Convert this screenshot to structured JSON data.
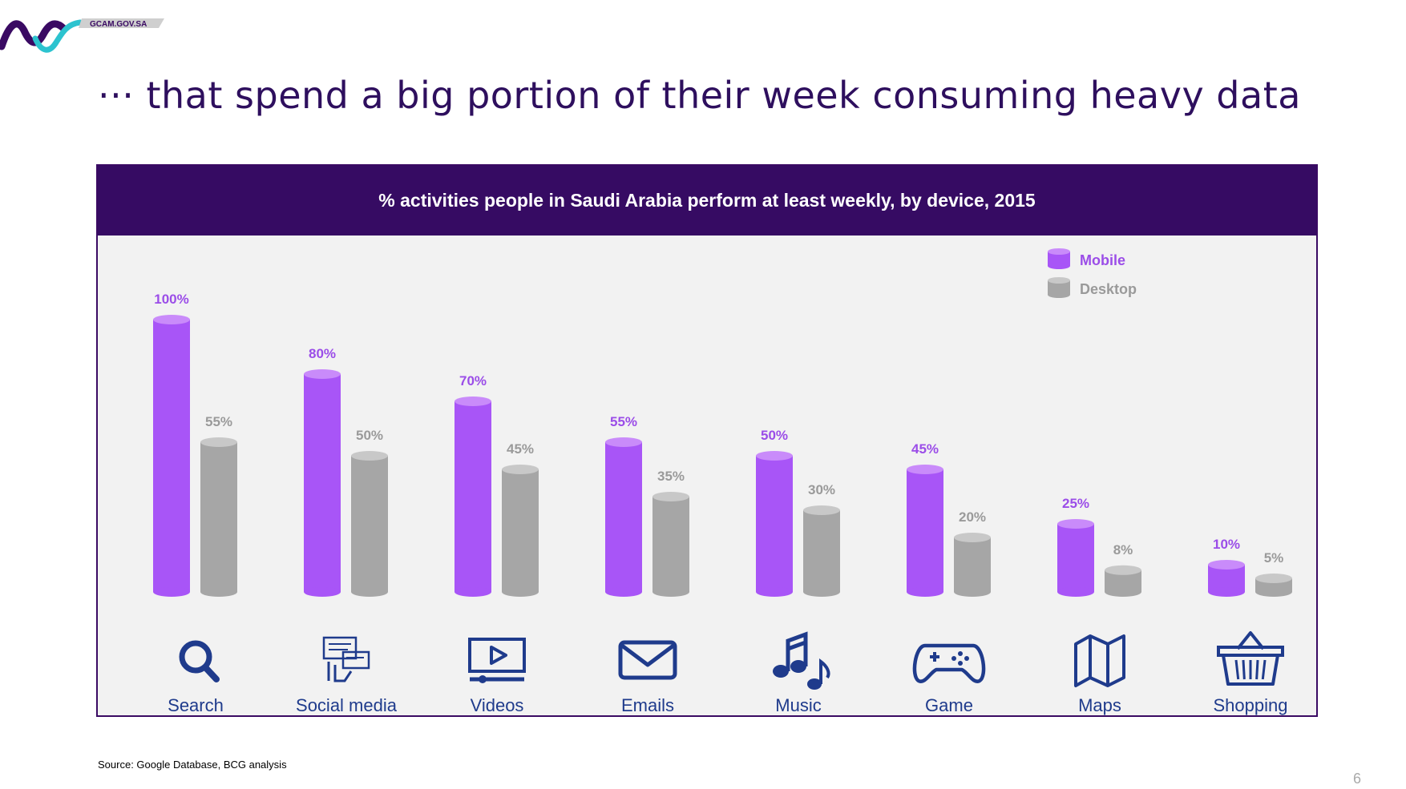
{
  "header": {
    "logo_text": "GCAM.GOV.SA",
    "title": "··· that spend a big portion of their week consuming heavy data"
  },
  "colors": {
    "mobile": "#a855f7",
    "mobile_top": "#c98bfa",
    "desktop": "#a6a6a6",
    "desktop_top": "#c8c8c8",
    "mobile_label": "#9b4de8",
    "desktop_label": "#9a9a9a",
    "icon": "#1f3b8c",
    "category_label": "#1f3b8c",
    "header_bg": "#360b63"
  },
  "chart_data": {
    "type": "bar",
    "title": "% activities people in Saudi Arabia perform at least weekly, by device, 2015",
    "categories": [
      "Search",
      "Social media",
      "Videos",
      "Emails",
      "Music",
      "Game",
      "Maps",
      "Shopping"
    ],
    "icons": [
      "search-icon",
      "social-media-icon",
      "video-icon",
      "email-icon",
      "music-icon",
      "game-controller-icon",
      "map-icon",
      "shopping-basket-icon"
    ],
    "series": [
      {
        "name": "Mobile",
        "values": [
          100,
          80,
          70,
          55,
          50,
          45,
          25,
          10
        ],
        "labels": [
          "100%",
          "80%",
          "70%",
          "55%",
          "50%",
          "45%",
          "25%",
          "10%"
        ]
      },
      {
        "name": "Desktop",
        "values": [
          55,
          50,
          45,
          35,
          30,
          20,
          8,
          5
        ],
        "labels": [
          "55%",
          "50%",
          "45%",
          "35%",
          "30%",
          "20%",
          "8%",
          "5%"
        ]
      }
    ],
    "ylim": [
      0,
      100
    ],
    "grid": false,
    "legend_position": "top-right"
  },
  "footer": {
    "source": "Source: Google Database, BCG analysis",
    "page_number": "6"
  }
}
